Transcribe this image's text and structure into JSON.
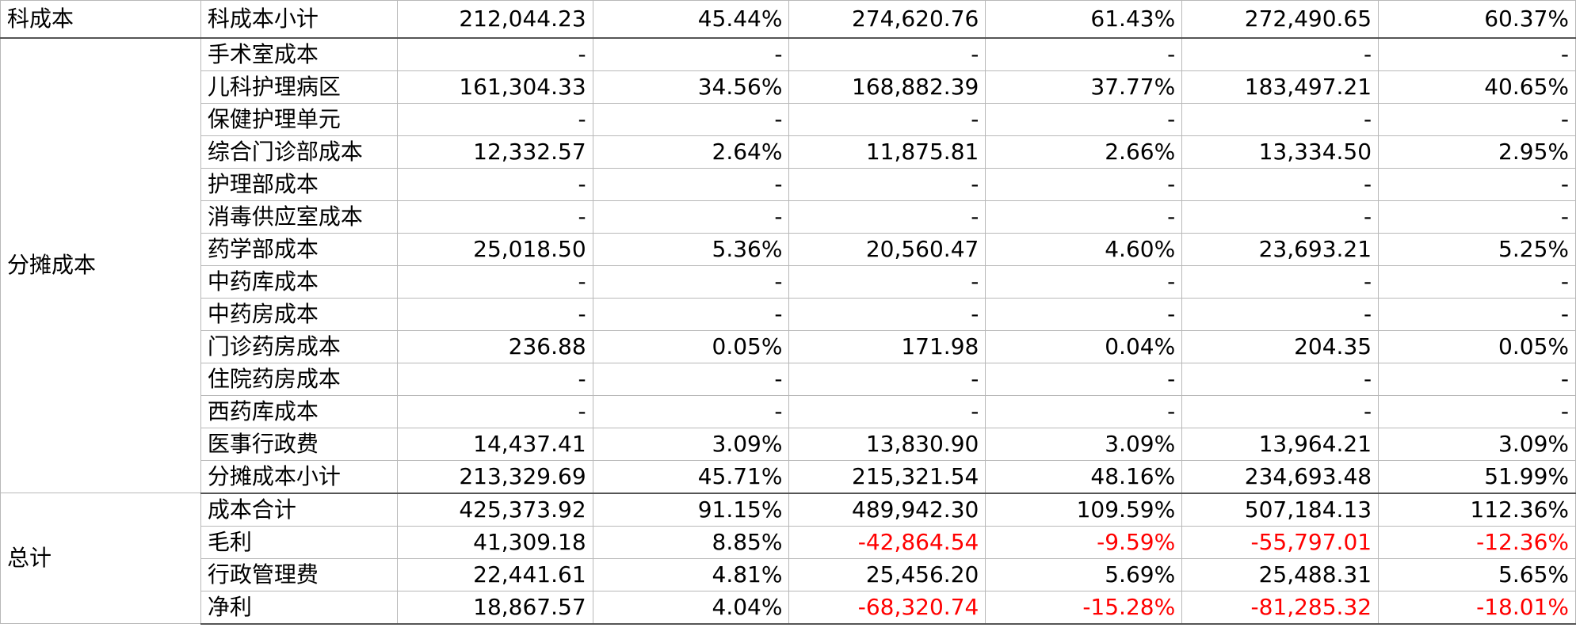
{
  "rows": [
    {
      "group": "科成本",
      "label": "科成本小计",
      "v": [
        "212,044.23",
        "45.44%",
        "274,620.76",
        "61.43%",
        "272,490.65",
        "60.37%"
      ]
    },
    {
      "group": "分摊成本",
      "label": "手术室成本",
      "v": [
        "-",
        "-",
        "-",
        "-",
        "-",
        "-"
      ]
    },
    {
      "label": "儿科护理病区",
      "v": [
        "161,304.33",
        "34.56%",
        "168,882.39",
        "37.77%",
        "183,497.21",
        "40.65%"
      ]
    },
    {
      "label": "保健护理单元",
      "v": [
        "-",
        "-",
        "-",
        "-",
        "-",
        "-"
      ]
    },
    {
      "label": "综合门诊部成本",
      "v": [
        "12,332.57",
        "2.64%",
        "11,875.81",
        "2.66%",
        "13,334.50",
        "2.95%"
      ]
    },
    {
      "label": "护理部成本",
      "v": [
        "-",
        "-",
        "-",
        "-",
        "-",
        "-"
      ]
    },
    {
      "label": "消毒供应室成本",
      "v": [
        "-",
        "-",
        "-",
        "-",
        "-",
        "-"
      ]
    },
    {
      "label": "药学部成本",
      "v": [
        "25,018.50",
        "5.36%",
        "20,560.47",
        "4.60%",
        "23,693.21",
        "5.25%"
      ]
    },
    {
      "label": "中药库成本",
      "v": [
        "-",
        "-",
        "-",
        "-",
        "-",
        "-"
      ]
    },
    {
      "label": "中药房成本",
      "v": [
        "-",
        "-",
        "-",
        "-",
        "-",
        "-"
      ]
    },
    {
      "label": "门诊药房成本",
      "v": [
        "236.88",
        "0.05%",
        "171.98",
        "0.04%",
        "204.35",
        "0.05%"
      ]
    },
    {
      "label": "住院药房成本",
      "v": [
        "-",
        "-",
        "-",
        "-",
        "-",
        "-"
      ]
    },
    {
      "label": "西药库成本",
      "v": [
        "-",
        "-",
        "-",
        "-",
        "-",
        "-"
      ]
    },
    {
      "label": "医事行政费",
      "v": [
        "14,437.41",
        "3.09%",
        "13,830.90",
        "3.09%",
        "13,964.21",
        "3.09%"
      ]
    },
    {
      "label": "分摊成本小计",
      "v": [
        "213,329.69",
        "45.71%",
        "215,321.54",
        "48.16%",
        "234,693.48",
        "51.99%"
      ]
    },
    {
      "group": "总计",
      "label": "成本合计",
      "v": [
        "425,373.92",
        "91.15%",
        "489,942.30",
        "109.59%",
        "507,184.13",
        "112.36%"
      ]
    },
    {
      "label": "毛利",
      "v": [
        "41,309.18",
        "8.85%",
        "-42,864.54",
        "-9.59%",
        "-55,797.01",
        "-12.36%"
      ]
    },
    {
      "label": "行政管理费",
      "v": [
        "22,441.61",
        "4.81%",
        "25,456.20",
        "5.69%",
        "25,488.31",
        "5.65%"
      ]
    },
    {
      "label": "净利",
      "v": [
        "18,867.57",
        "4.04%",
        "-68,320.74",
        "-15.28%",
        "-81,285.32",
        "-18.01%"
      ]
    }
  ],
  "negative_color": "#ff0000"
}
